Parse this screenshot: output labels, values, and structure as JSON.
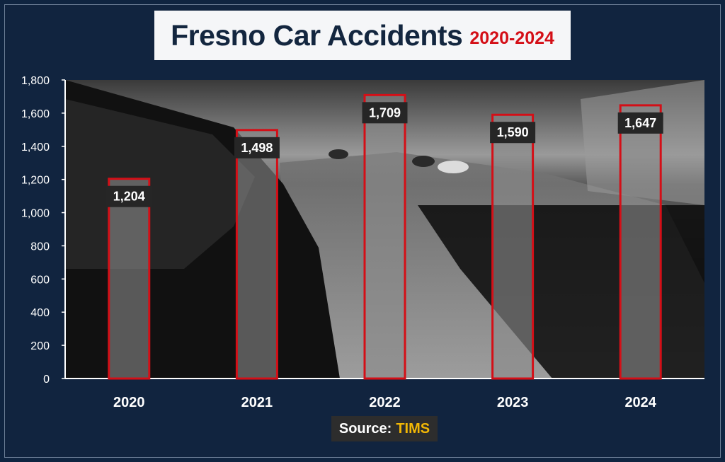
{
  "title": {
    "main": "Fresno Car Accidents",
    "years": "2020-2024"
  },
  "source": {
    "prefix": "Source:",
    "name": "TIMS"
  },
  "colors": {
    "background": "#0f2440",
    "bar_fill": "#8a8a8a",
    "bar_outline": "#d40f17",
    "label_box": "#262626",
    "source_accent": "#f2b705"
  },
  "chart_data": {
    "type": "bar",
    "title": "Fresno Car Accidents 2020-2024",
    "categories": [
      "2020",
      "2021",
      "2022",
      "2023",
      "2024"
    ],
    "values": [
      1204,
      1498,
      1709,
      1590,
      1647
    ],
    "value_labels": [
      "1,204",
      "1,498",
      "1,709",
      "1,590",
      "1,647"
    ],
    "ylim": [
      0,
      1800
    ],
    "yticks": [
      0,
      200,
      400,
      600,
      800,
      1000,
      1200,
      1400,
      1600,
      1800
    ],
    "ytick_labels": [
      "0",
      "200",
      "400",
      "600",
      "800",
      "1,000",
      "1,200",
      "1,400",
      "1,600",
      "1,800"
    ],
    "xlabel": "",
    "ylabel": "",
    "grid": false,
    "legend": "none"
  }
}
